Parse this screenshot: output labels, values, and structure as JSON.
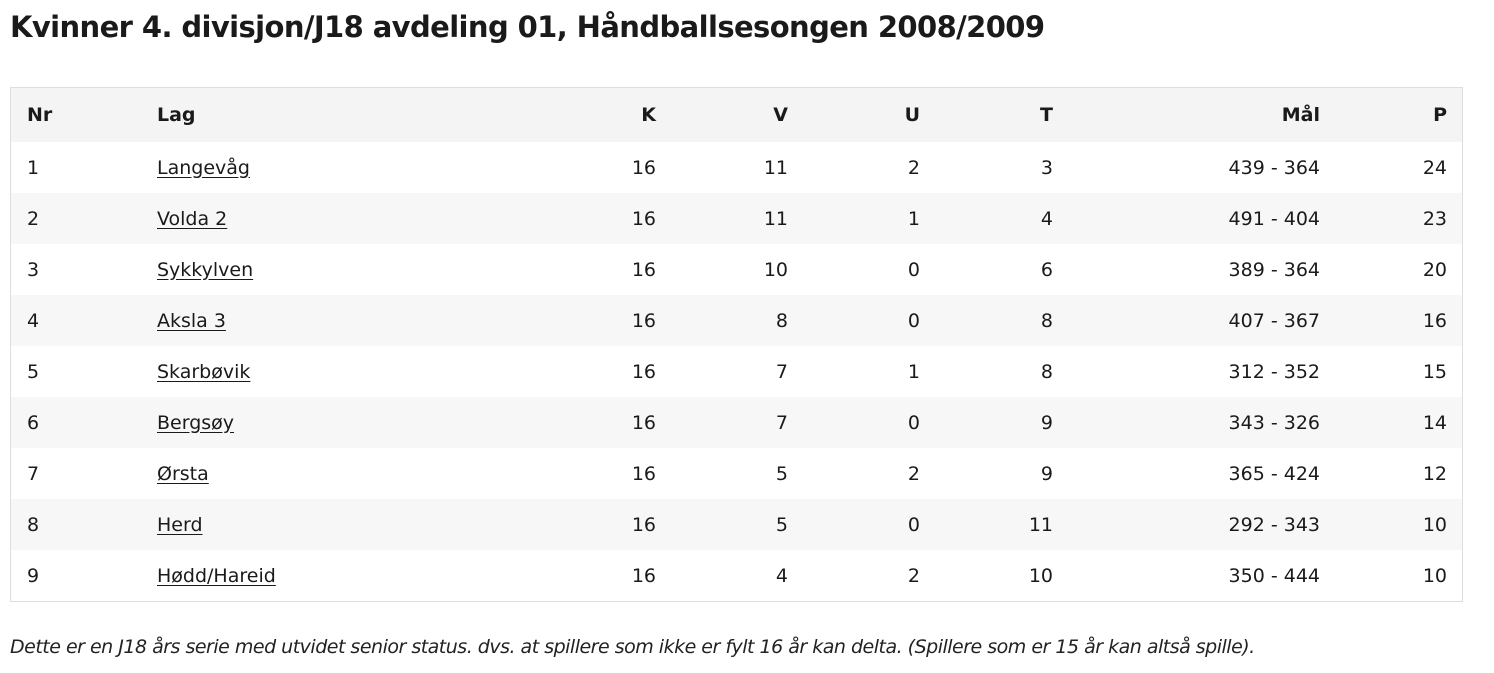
{
  "title": "Kvinner 4. divisjon/J18 avdeling 01, Håndballsesongen 2008/2009",
  "table": {
    "headers": {
      "nr": "Nr",
      "lag": "Lag",
      "k": "K",
      "v": "V",
      "u": "U",
      "t": "T",
      "mal": "Mål",
      "p": "P"
    },
    "rows": [
      {
        "nr": "1",
        "lag": "Langevåg",
        "k": "16",
        "v": "11",
        "u": "2",
        "t": "3",
        "mal": "439 - 364",
        "p": "24"
      },
      {
        "nr": "2",
        "lag": "Volda 2",
        "k": "16",
        "v": "11",
        "u": "1",
        "t": "4",
        "mal": "491 - 404",
        "p": "23"
      },
      {
        "nr": "3",
        "lag": "Sykkylven",
        "k": "16",
        "v": "10",
        "u": "0",
        "t": "6",
        "mal": "389 - 364",
        "p": "20"
      },
      {
        "nr": "4",
        "lag": "Aksla 3",
        "k": "16",
        "v": "8",
        "u": "0",
        "t": "8",
        "mal": "407 - 367",
        "p": "16"
      },
      {
        "nr": "5",
        "lag": "Skarbøvik",
        "k": "16",
        "v": "7",
        "u": "1",
        "t": "8",
        "mal": "312 - 352",
        "p": "15"
      },
      {
        "nr": "6",
        "lag": "Bergsøy",
        "k": "16",
        "v": "7",
        "u": "0",
        "t": "9",
        "mal": "343 - 326",
        "p": "14"
      },
      {
        "nr": "7",
        "lag": "Ørsta",
        "k": "16",
        "v": "5",
        "u": "2",
        "t": "9",
        "mal": "365 - 424",
        "p": "12"
      },
      {
        "nr": "8",
        "lag": "Herd",
        "k": "16",
        "v": "5",
        "u": "0",
        "t": "11",
        "mal": "292 - 343",
        "p": "10"
      },
      {
        "nr": "9",
        "lag": "Hødd/Hareid",
        "k": "16",
        "v": "4",
        "u": "2",
        "t": "10",
        "mal": "350 - 444",
        "p": "10"
      }
    ]
  },
  "note": "Dette er en J18 års serie med utvidet senior status. dvs. at spillere som ikke er fylt 16 år kan delta. (Spillere som er 15 år kan altså spille)."
}
